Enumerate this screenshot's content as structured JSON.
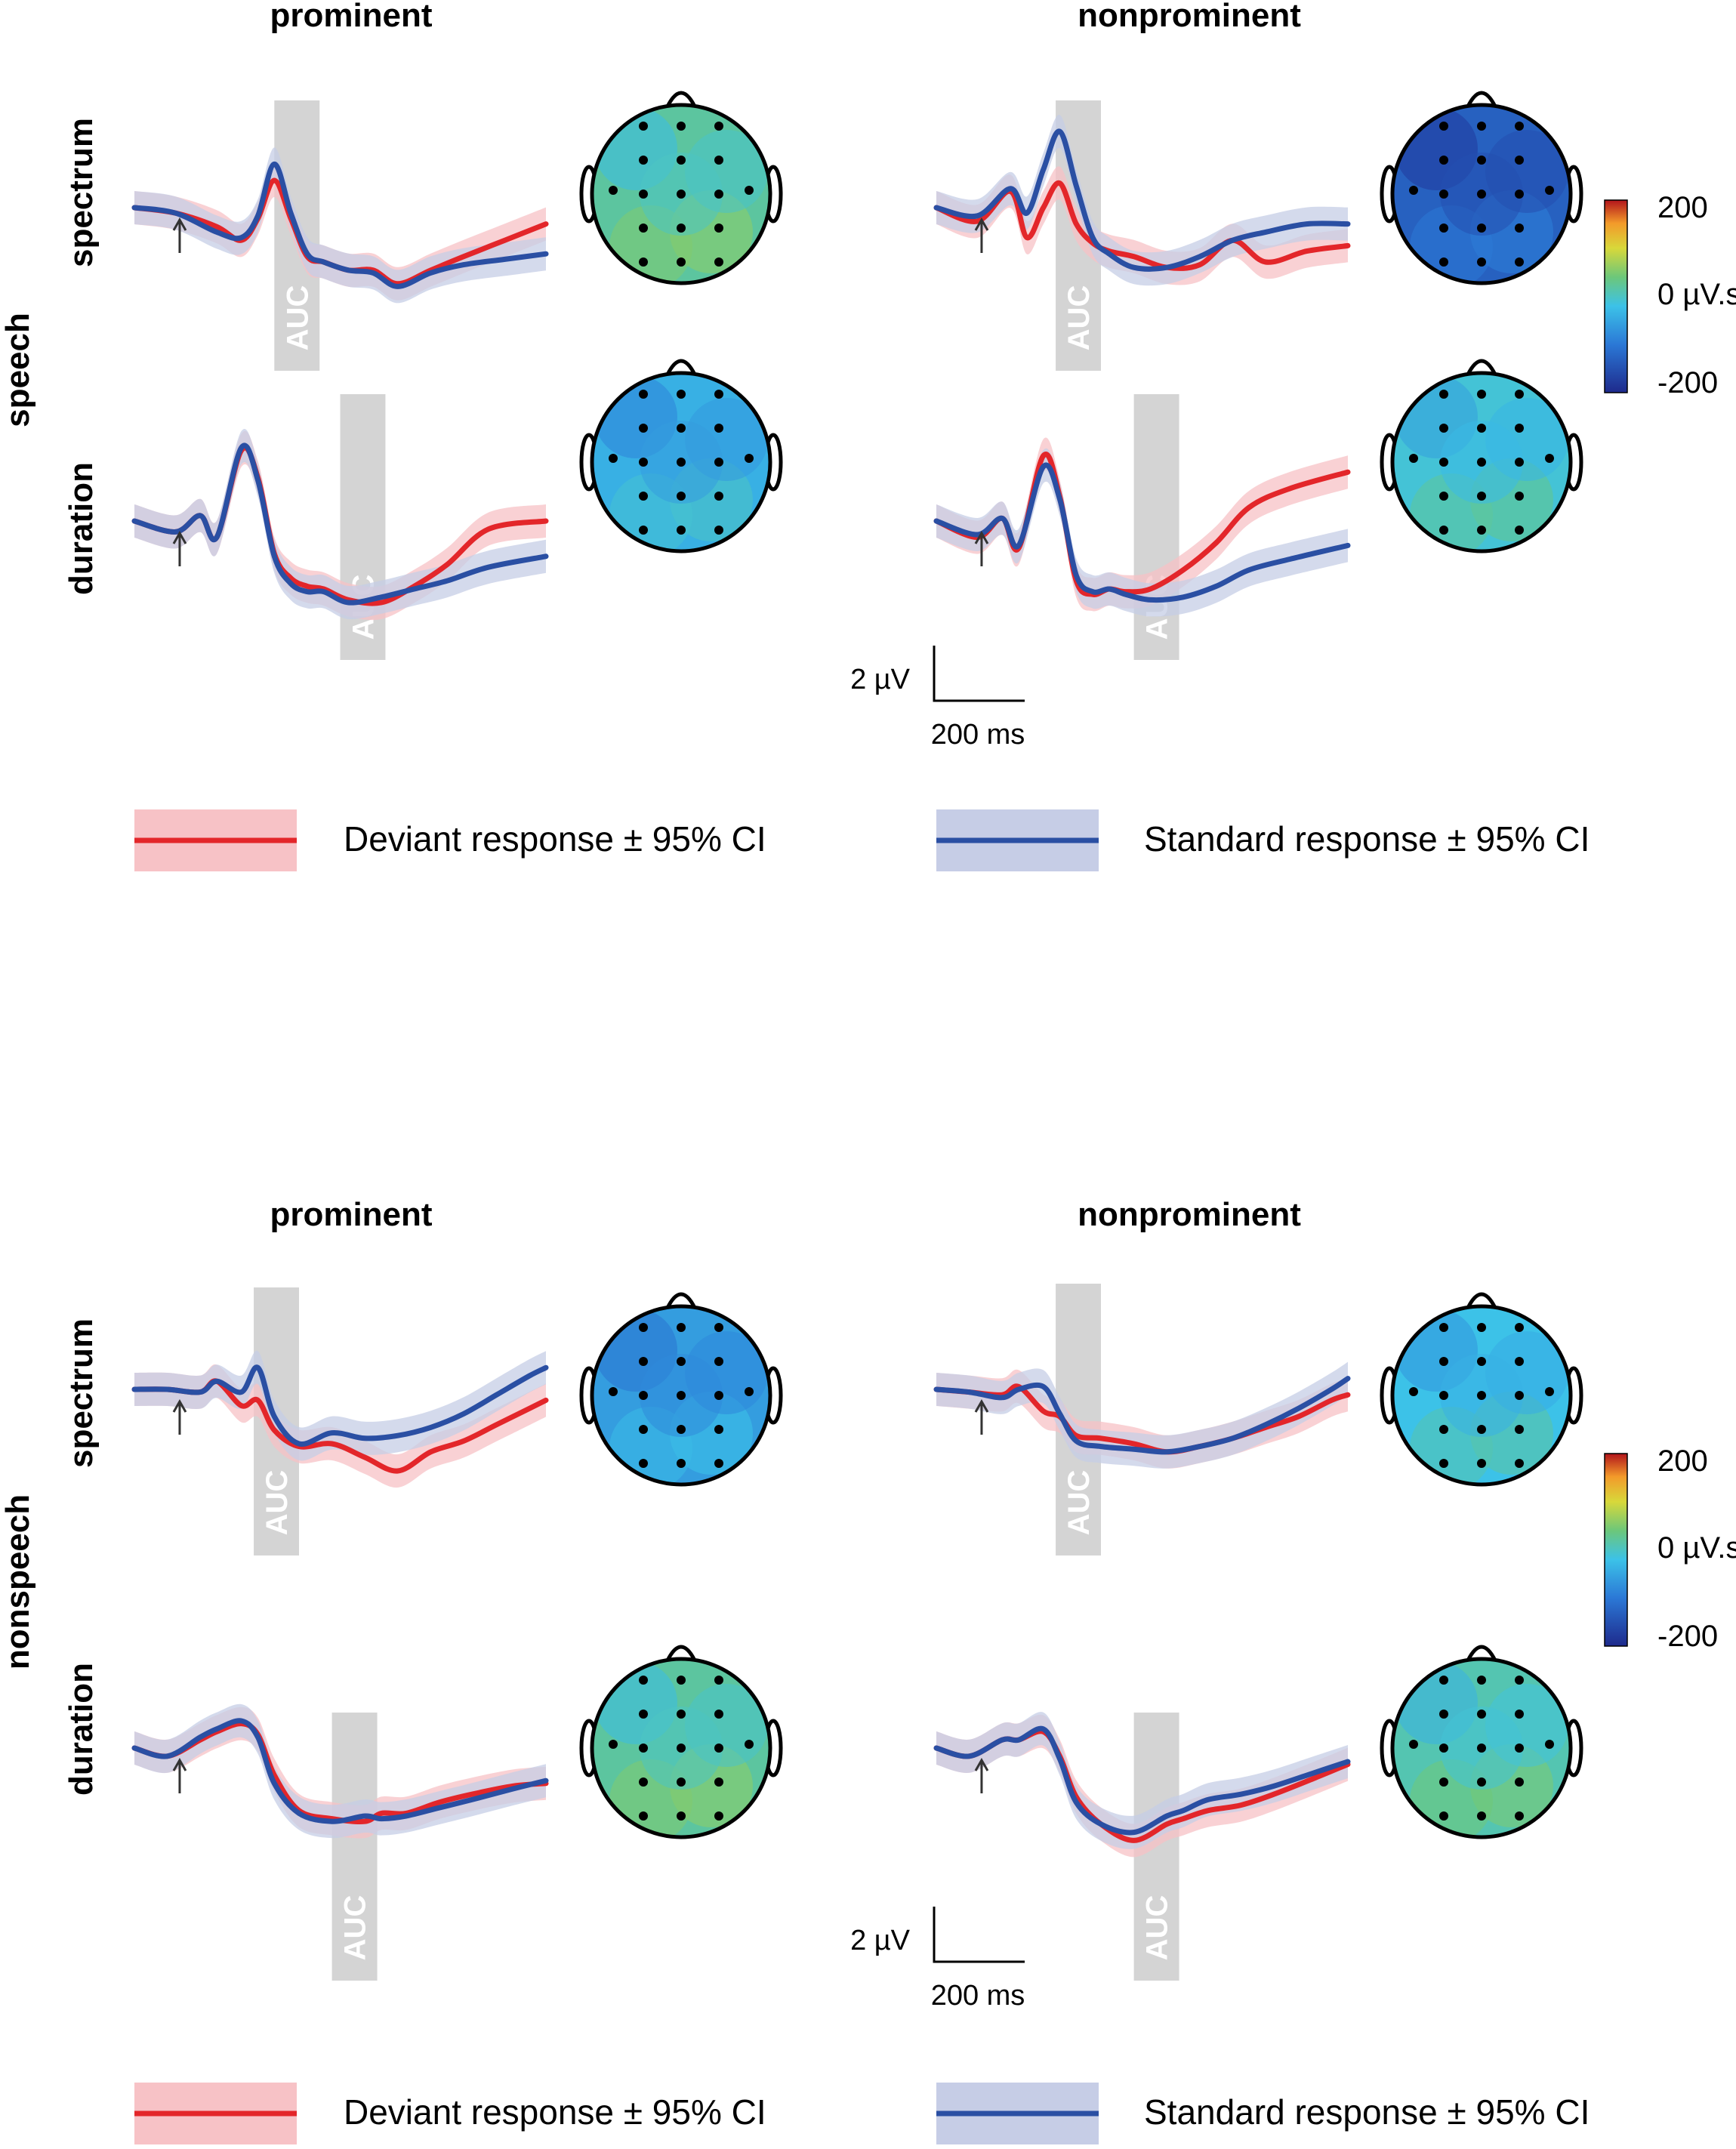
{
  "chart_data": {
    "type": "line",
    "description_panels": "ERP waveforms with AUC windows and scalp topographies",
    "column_headers": [
      "prominent",
      "nonprominent"
    ],
    "row_labels": [
      "spectrum",
      "duration"
    ],
    "groups": [
      {
        "name": "speech",
        "panels": [
          {
            "condition": "prominent",
            "feature": "spectrum",
            "auc_label": "AUC",
            "auc_window_ms": [
              170,
              225
            ],
            "topo_mean_uVs": 20,
            "series": [
              {
                "name": "Deviant",
                "time_ms": [
                  0,
                  50,
                  100,
                  130,
                  150,
                  170,
                  190,
                  210,
                  230,
                  260,
                  290,
                  320,
                  360,
                  400,
                  450,
                  500
                ],
                "values_uV": [
                  0,
                  -0.2,
                  -0.7,
                  -1.2,
                  -0.4,
                  1.0,
                  -0.4,
                  -1.8,
                  -2.0,
                  -2.3,
                  -2.3,
                  -2.8,
                  -2.3,
                  -1.8,
                  -1.2,
                  -0.6
                ]
              },
              {
                "name": "Standard",
                "time_ms": [
                  0,
                  50,
                  100,
                  130,
                  150,
                  170,
                  190,
                  210,
                  230,
                  260,
                  290,
                  320,
                  360,
                  400,
                  450,
                  500
                ],
                "values_uV": [
                  0,
                  -0.2,
                  -0.9,
                  -1.1,
                  -0.3,
                  1.6,
                  -0.2,
                  -1.7,
                  -2.0,
                  -2.3,
                  -2.4,
                  -2.9,
                  -2.4,
                  -2.1,
                  -1.9,
                  -1.7
                ]
              }
            ]
          },
          {
            "condition": "nonprominent",
            "feature": "spectrum",
            "auc_label": "AUC",
            "auc_window_ms": [
              145,
              200
            ],
            "topo_mean_uVs": -130,
            "series": [
              {
                "name": "Deviant",
                "time_ms": [
                  0,
                  50,
                  90,
                  110,
                  130,
                  150,
                  170,
                  190,
                  210,
                  240,
                  280,
                  320,
                  360,
                  400,
                  450,
                  500
                ],
                "values_uV": [
                  0,
                  -0.5,
                  0.6,
                  -1.1,
                  0.0,
                  0.9,
                  -0.6,
                  -1.3,
                  -1.6,
                  -1.8,
                  -2.2,
                  -2.1,
                  -1.2,
                  -2.0,
                  -1.6,
                  -1.4
                ]
              },
              {
                "name": "Standard",
                "time_ms": [
                  0,
                  50,
                  90,
                  110,
                  130,
                  150,
                  170,
                  190,
                  210,
                  240,
                  280,
                  320,
                  360,
                  400,
                  450,
                  500
                ],
                "values_uV": [
                  0,
                  -0.3,
                  0.7,
                  -0.2,
                  1.4,
                  2.8,
                  0.8,
                  -1.1,
                  -1.7,
                  -2.2,
                  -2.2,
                  -1.8,
                  -1.2,
                  -0.9,
                  -0.6,
                  -0.6
                ]
              }
            ]
          },
          {
            "condition": "prominent",
            "feature": "duration",
            "auc_label": "AUC",
            "auc_window_ms": [
              250,
              305
            ],
            "topo_mean_uVs": -40,
            "series": [
              {
                "name": "Deviant",
                "time_ms": [
                  0,
                  50,
                  80,
                  100,
                  130,
                  150,
                  170,
                  190,
                  210,
                  230,
                  260,
                  300,
                  340,
                  380,
                  430,
                  500
                ],
                "values_uV": [
                  0,
                  -0.4,
                  0.2,
                  -0.6,
                  2.6,
                  1.6,
                  -1.2,
                  -2.1,
                  -2.4,
                  -2.5,
                  -2.9,
                  -3.0,
                  -2.4,
                  -1.6,
                  -0.3,
                  0.0
                ]
              },
              {
                "name": "Standard",
                "time_ms": [
                  0,
                  50,
                  80,
                  100,
                  130,
                  150,
                  170,
                  190,
                  210,
                  230,
                  260,
                  300,
                  340,
                  380,
                  430,
                  500
                ],
                "values_uV": [
                  0,
                  -0.4,
                  0.2,
                  -0.6,
                  2.7,
                  1.5,
                  -1.3,
                  -2.3,
                  -2.6,
                  -2.6,
                  -3.0,
                  -2.8,
                  -2.5,
                  -2.2,
                  -1.7,
                  -1.3
                ]
              }
            ]
          },
          {
            "condition": "nonprominent",
            "feature": "duration",
            "auc_label": "AUC",
            "auc_window_ms": [
              240,
              295
            ],
            "topo_mean_uVs": -10,
            "series": [
              {
                "name": "Deviant",
                "time_ms": [
                  0,
                  50,
                  80,
                  100,
                  130,
                  150,
                  170,
                  190,
                  210,
                  230,
                  260,
                  300,
                  340,
                  380,
                  430,
                  500
                ],
                "values_uV": [
                  0,
                  -0.6,
                  0.1,
                  -1.0,
                  2.4,
                  0.9,
                  -2.2,
                  -2.7,
                  -2.5,
                  -2.6,
                  -2.5,
                  -1.8,
                  -0.8,
                  0.5,
                  1.2,
                  1.8
                ]
              },
              {
                "name": "Standard",
                "time_ms": [
                  0,
                  50,
                  80,
                  100,
                  130,
                  150,
                  170,
                  190,
                  210,
                  230,
                  260,
                  300,
                  340,
                  380,
                  430,
                  500
                ],
                "values_uV": [
                  0,
                  -0.5,
                  0.1,
                  -0.9,
                  2.0,
                  0.8,
                  -2.0,
                  -2.6,
                  -2.5,
                  -2.7,
                  -2.9,
                  -2.8,
                  -2.4,
                  -1.8,
                  -1.4,
                  -0.9
                ]
              }
            ]
          }
        ]
      },
      {
        "name": "nonspeech",
        "panels": [
          {
            "condition": "prominent",
            "feature": "spectrum",
            "auc_label": "AUC",
            "auc_window_ms": [
              145,
              200
            ],
            "topo_mean_uVs": -60,
            "series": [
              {
                "name": "Deviant",
                "time_ms": [
                  0,
                  40,
                  80,
                  100,
                  130,
                  150,
                  170,
                  200,
                  240,
                  280,
                  320,
                  360,
                  400,
                  440,
                  480,
                  500
                ],
                "values_uV": [
                  0,
                  0,
                  -0.1,
                  0.3,
                  -0.6,
                  -0.4,
                  -1.5,
                  -2.1,
                  -2.0,
                  -2.5,
                  -3.0,
                  -2.3,
                  -1.9,
                  -1.3,
                  -0.7,
                  -0.4
                ]
              },
              {
                "name": "Standard",
                "time_ms": [
                  0,
                  40,
                  80,
                  100,
                  130,
                  150,
                  170,
                  200,
                  240,
                  280,
                  320,
                  360,
                  400,
                  440,
                  480,
                  500
                ],
                "values_uV": [
                  0,
                  0,
                  -0.1,
                  0.3,
                  -0.1,
                  0.8,
                  -1.0,
                  -2.0,
                  -1.6,
                  -1.8,
                  -1.7,
                  -1.4,
                  -0.9,
                  -0.2,
                  0.5,
                  0.8
                ]
              }
            ]
          },
          {
            "condition": "nonprominent",
            "feature": "spectrum",
            "auc_label": "AUC",
            "auc_window_ms": [
              145,
              200
            ],
            "topo_mean_uVs": -20,
            "series": [
              {
                "name": "Deviant",
                "time_ms": [
                  0,
                  40,
                  80,
                  100,
                  130,
                  150,
                  170,
                  200,
                  240,
                  280,
                  320,
                  360,
                  400,
                  440,
                  480,
                  500
                ],
                "values_uV": [
                  0,
                  -0.1,
                  -0.2,
                  0.1,
                  -0.8,
                  -1.0,
                  -1.7,
                  -1.8,
                  -2.0,
                  -2.3,
                  -2.1,
                  -1.8,
                  -1.4,
                  -1.0,
                  -0.4,
                  -0.2
                ]
              },
              {
                "name": "Standard",
                "time_ms": [
                  0,
                  40,
                  80,
                  100,
                  130,
                  150,
                  170,
                  200,
                  240,
                  280,
                  320,
                  360,
                  400,
                  440,
                  480,
                  500
                ],
                "values_uV": [
                  0,
                  -0.1,
                  -0.3,
                  0.0,
                  0.1,
                  -0.9,
                  -1.9,
                  -2.1,
                  -2.2,
                  -2.3,
                  -2.1,
                  -1.8,
                  -1.3,
                  -0.7,
                  0.0,
                  0.4
                ]
              }
            ]
          },
          {
            "condition": "prominent",
            "feature": "duration",
            "auc_label": "AUC",
            "auc_window_ms": [
              240,
              295
            ],
            "topo_mean_uVs": 20,
            "series": [
              {
                "name": "Deviant",
                "time_ms": [
                  0,
                  40,
                  80,
                  100,
                  130,
                  150,
                  170,
                  200,
                  240,
                  280,
                  300,
                  330,
                  370,
                  410,
                  460,
                  500
                ],
                "values_uV": [
                  0,
                  -0.3,
                  0.3,
                  0.6,
                  0.9,
                  0.5,
                  -1.0,
                  -2.3,
                  -2.6,
                  -2.7,
                  -2.4,
                  -2.4,
                  -2.0,
                  -1.7,
                  -1.4,
                  -1.3
                ]
              },
              {
                "name": "Standard",
                "time_ms": [
                  0,
                  40,
                  80,
                  100,
                  130,
                  150,
                  170,
                  200,
                  240,
                  280,
                  300,
                  330,
                  370,
                  410,
                  460,
                  500
                ],
                "values_uV": [
                  0,
                  -0.3,
                  0.4,
                  0.7,
                  1.0,
                  0.4,
                  -1.3,
                  -2.4,
                  -2.7,
                  -2.5,
                  -2.6,
                  -2.5,
                  -2.2,
                  -1.9,
                  -1.5,
                  -1.2
                ]
              }
            ]
          },
          {
            "condition": "nonprominent",
            "feature": "duration",
            "auc_label": "AUC",
            "auc_window_ms": [
              240,
              295
            ],
            "topo_mean_uVs": 10,
            "series": [
              {
                "name": "Deviant",
                "time_ms": [
                  0,
                  40,
                  80,
                  100,
                  130,
                  150,
                  170,
                  200,
                  240,
                  280,
                  300,
                  330,
                  370,
                  410,
                  460,
                  500
                ],
                "values_uV": [
                  0,
                  -0.3,
                  0.3,
                  0.3,
                  0.6,
                  -0.3,
                  -1.8,
                  -2.8,
                  -3.4,
                  -2.8,
                  -2.6,
                  -2.3,
                  -2.1,
                  -1.7,
                  -1.1,
                  -0.6
                ]
              },
              {
                "name": "Standard",
                "time_ms": [
                  0,
                  40,
                  80,
                  100,
                  130,
                  150,
                  170,
                  200,
                  240,
                  280,
                  300,
                  330,
                  370,
                  410,
                  460,
                  500
                ],
                "values_uV": [
                  0,
                  -0.3,
                  0.3,
                  0.3,
                  0.7,
                  -0.4,
                  -2.0,
                  -2.8,
                  -3.1,
                  -2.5,
                  -2.3,
                  -1.9,
                  -1.7,
                  -1.4,
                  -0.9,
                  -0.5
                ]
              }
            ]
          }
        ]
      }
    ],
    "colorbar": {
      "max_label": "200",
      "mid_label": "0 µV.s",
      "min_label": "-200",
      "range": [
        -200,
        200
      ]
    },
    "scalebar": {
      "voltage_label": "2 µV",
      "time_label": "200 ms",
      "voltage_uV": 2,
      "time_ms": 200
    },
    "legend": [
      {
        "label": "Deviant response ± 95% CI",
        "color": "#e3262a",
        "ci_color": "#f7c2c6"
      },
      {
        "label": "Standard response ± 95% CI",
        "color": "#2a4fa3",
        "ci_color": "#c6cde6"
      }
    ]
  }
}
